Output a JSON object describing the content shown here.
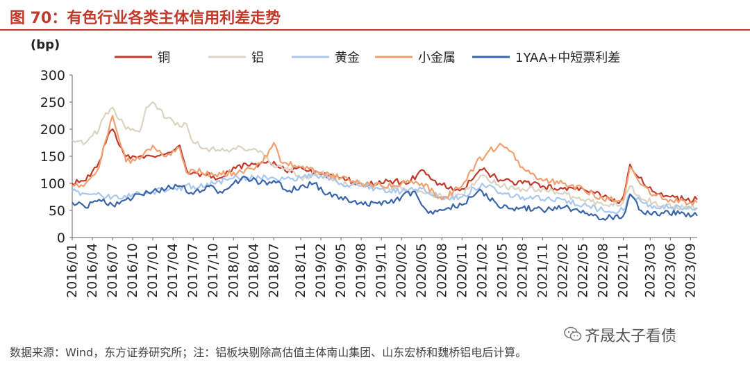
{
  "title": "图 70：有色行业各类主体信用利差走势",
  "source": "数据来源：Wind，东方证券研究所；注：铝板块剔除高估值主体南山集团、山东宏桥和魏桥铝电后计算。",
  "watermark": "齐晟太子看债",
  "chart_data": {
    "type": "line",
    "ylabel": "(bp)",
    "ylim": [
      0,
      300
    ],
    "yticks": [
      0,
      50,
      100,
      150,
      200,
      250,
      300
    ],
    "xlim": [
      "2016/01",
      "2023/10"
    ],
    "xticks": [
      "2016/01",
      "2016/04",
      "2016/07",
      "2016/10",
      "2017/01",
      "2017/04",
      "2017/07",
      "2017/10",
      "2018/01",
      "2018/04",
      "2018/07",
      "2018/11",
      "2019/02",
      "2019/05",
      "2019/08",
      "2019/11",
      "2020/02",
      "2020/05",
      "2020/08",
      "2020/11",
      "2021/02",
      "2021/05",
      "2021/08",
      "2021/11",
      "2022/02",
      "2022/05",
      "2022/08",
      "2022/11",
      "2023/03",
      "2023/06",
      "2023/09"
    ],
    "grid": false,
    "legend_position": "top",
    "series": [
      {
        "name": "铜",
        "color": "#c0392b",
        "x": [
          "2016/01",
          "2016/03",
          "2016/05",
          "2016/06",
          "2016/07",
          "2016/08",
          "2016/09",
          "2016/11",
          "2017/01",
          "2017/03",
          "2017/05",
          "2017/06",
          "2017/07",
          "2017/09",
          "2017/11",
          "2018/01",
          "2018/04",
          "2018/07",
          "2018/09",
          "2018/11",
          "2019/02",
          "2019/05",
          "2019/08",
          "2019/11",
          "2020/01",
          "2020/03",
          "2020/05",
          "2020/07",
          "2020/09",
          "2020/11",
          "2021/01",
          "2021/02",
          "2021/05",
          "2021/08",
          "2021/11",
          "2022/02",
          "2022/05",
          "2022/08",
          "2022/10",
          "2022/11",
          "2022/12",
          "2023/02",
          "2023/04",
          "2023/06",
          "2023/08",
          "2023/10"
        ],
        "y": [
          100,
          105,
          140,
          175,
          200,
          170,
          150,
          150,
          150,
          155,
          170,
          125,
          120,
          115,
          110,
          130,
          135,
          140,
          120,
          130,
          115,
          110,
          100,
          100,
          105,
          100,
          125,
          105,
          90,
          90,
          115,
          125,
          105,
          100,
          95,
          90,
          90,
          75,
          65,
          75,
          135,
          100,
          80,
          75,
          70,
          70
        ]
      },
      {
        "name": "铝",
        "color": "#d9d4c3",
        "x": [
          "2016/01",
          "2016/03",
          "2016/05",
          "2016/06",
          "2016/07",
          "2016/09",
          "2016/11",
          "2016/12",
          "2017/01",
          "2017/03",
          "2017/04",
          "2017/05",
          "2017/06",
          "2017/07",
          "2017/09",
          "2017/11",
          "2018/01",
          "2018/03",
          "2018/05",
          "2018/07",
          "2018/09",
          "2018/11",
          "2019/02",
          "2019/05",
          "2019/08",
          "2019/11",
          "2020/02",
          "2020/05",
          "2020/08",
          "2020/11",
          "2021/02",
          "2021/05",
          "2021/08",
          "2021/11",
          "2022/02",
          "2022/05",
          "2022/08",
          "2022/11",
          "2022/12",
          "2023/02",
          "2023/05",
          "2023/08",
          "2023/10"
        ],
        "y": [
          180,
          175,
          200,
          230,
          240,
          200,
          195,
          240,
          250,
          220,
          215,
          205,
          210,
          175,
          165,
          160,
          165,
          160,
          160,
          130,
          130,
          110,
          120,
          100,
          100,
          95,
          90,
          85,
          75,
          80,
          115,
          95,
          90,
          90,
          80,
          70,
          60,
          65,
          95,
          70,
          60,
          55,
          55
        ]
      },
      {
        "name": "黄金",
        "color": "#a9c8ee",
        "x": [
          "2016/01",
          "2016/04",
          "2016/07",
          "2016/10",
          "2017/01",
          "2017/04",
          "2017/07",
          "2017/10",
          "2018/01",
          "2018/04",
          "2018/07",
          "2018/11",
          "2019/02",
          "2019/05",
          "2019/08",
          "2019/11",
          "2020/02",
          "2020/05",
          "2020/08",
          "2020/11",
          "2021/02",
          "2021/05",
          "2021/08",
          "2021/11",
          "2022/02",
          "2022/05",
          "2022/08",
          "2022/11",
          "2022/12",
          "2023/03",
          "2023/06",
          "2023/09",
          "2023/10"
        ],
        "y": [
          85,
          80,
          75,
          80,
          85,
          90,
          95,
          100,
          110,
          110,
          110,
          110,
          115,
          100,
          95,
          90,
          85,
          90,
          75,
          75,
          100,
          80,
          75,
          70,
          70,
          60,
          50,
          50,
          80,
          60,
          55,
          55,
          55
        ]
      },
      {
        "name": "小金属",
        "color": "#f0a070",
        "x": [
          "2016/01",
          "2016/03",
          "2016/05",
          "2016/06",
          "2016/07",
          "2016/08",
          "2016/09",
          "2016/11",
          "2017/01",
          "2017/03",
          "2017/05",
          "2017/06",
          "2017/07",
          "2017/10",
          "2018/01",
          "2018/04",
          "2018/06",
          "2018/07",
          "2018/08",
          "2018/11",
          "2019/02",
          "2019/05",
          "2019/08",
          "2019/11",
          "2020/02",
          "2020/05",
          "2020/08",
          "2020/11",
          "2021/01",
          "2021/03",
          "2021/05",
          "2021/06",
          "2021/08",
          "2021/11",
          "2022/02",
          "2022/05",
          "2022/08",
          "2022/11",
          "2022/12",
          "2023/03",
          "2023/06",
          "2023/09",
          "2023/10"
        ],
        "y": [
          95,
          100,
          130,
          180,
          225,
          180,
          140,
          145,
          170,
          150,
          165,
          120,
          125,
          115,
          120,
          125,
          150,
          175,
          140,
          130,
          120,
          110,
          100,
          95,
          100,
          100,
          70,
          95,
          135,
          160,
          170,
          160,
          130,
          105,
          100,
          90,
          70,
          70,
          130,
          80,
          70,
          65,
          65
        ]
      },
      {
        "name": "1YAA+中短票利差",
        "color": "#3a64a8",
        "x": [
          "2016/01",
          "2016/03",
          "2016/05",
          "2016/07",
          "2016/09",
          "2016/11",
          "2017/01",
          "2017/03",
          "2017/05",
          "2017/07",
          "2017/09",
          "2017/11",
          "2018/01",
          "2018/03",
          "2018/05",
          "2018/07",
          "2018/09",
          "2018/11",
          "2019/01",
          "2019/03",
          "2019/05",
          "2019/08",
          "2019/11",
          "2020/02",
          "2020/04",
          "2020/05",
          "2020/06",
          "2020/07",
          "2020/09",
          "2020/11",
          "2021/01",
          "2021/02",
          "2021/05",
          "2021/08",
          "2021/11",
          "2022/02",
          "2022/05",
          "2022/08",
          "2022/11",
          "2022/12",
          "2023/02",
          "2023/05",
          "2023/08",
          "2023/10"
        ],
        "y": [
          65,
          55,
          70,
          60,
          70,
          80,
          85,
          90,
          95,
          80,
          95,
          85,
          100,
          110,
          100,
          105,
          85,
          95,
          100,
          80,
          75,
          65,
          60,
          75,
          85,
          60,
          45,
          50,
          55,
          60,
          80,
          85,
          55,
          55,
          50,
          55,
          50,
          35,
          40,
          80,
          45,
          45,
          45,
          40
        ]
      }
    ]
  }
}
